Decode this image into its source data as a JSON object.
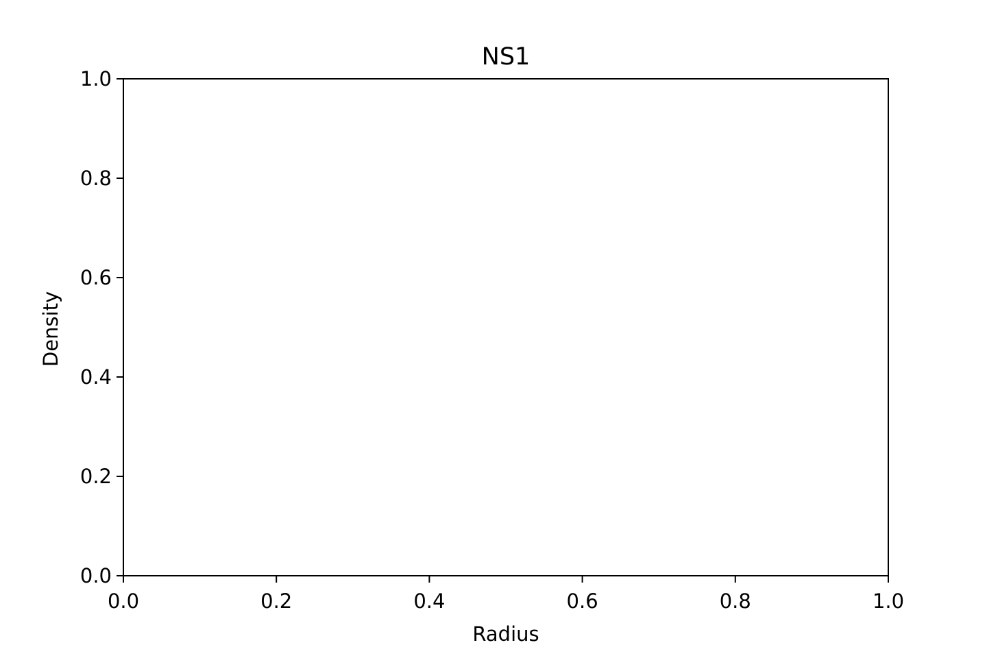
{
  "chart_data": {
    "type": "line",
    "title": "NS1",
    "xlabel": "Radius",
    "ylabel": "Density",
    "xlim": [
      0.0,
      1.0
    ],
    "ylim": [
      0.0,
      1.0
    ],
    "x_ticks": [
      0.0,
      0.2,
      0.4,
      0.6,
      0.8,
      1.0
    ],
    "y_ticks": [
      0.0,
      0.2,
      0.4,
      0.6,
      0.8,
      1.0
    ],
    "x_tick_labels": [
      "0.0",
      "0.2",
      "0.4",
      "0.6",
      "0.8",
      "1.0"
    ],
    "y_tick_labels": [
      "0.0",
      "0.2",
      "0.4",
      "0.6",
      "0.8",
      "1.0"
    ],
    "series": [],
    "grid": false,
    "legend": "none"
  }
}
